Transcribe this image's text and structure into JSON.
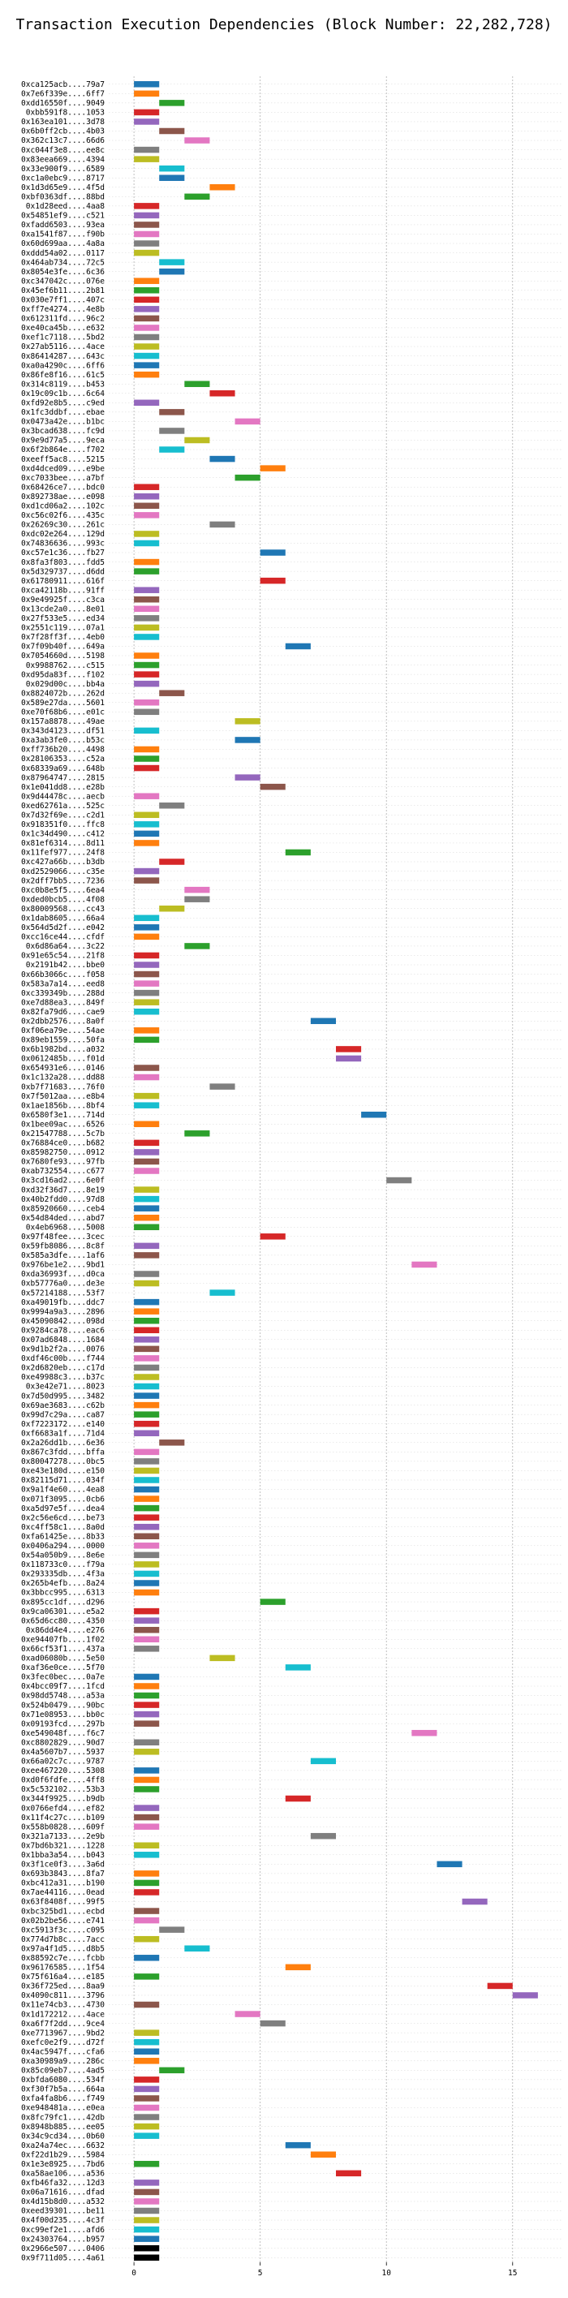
{
  "chart_data": {
    "type": "bar",
    "orientation": "horizontal",
    "title": "Transaction Execution Dependencies (Block Number: 22,282,728)",
    "xlabel": "",
    "ylabel": "",
    "xlim": [
      -1,
      17
    ],
    "xticks": [
      0,
      5,
      10,
      15
    ],
    "grid": "vertical dotted",
    "bar_width": 1,
    "colors": [
      "#1f77b4",
      "#ff7f0e",
      "#2ca02c",
      "#d62728",
      "#9467bd",
      "#8c564b",
      "#e377c2",
      "#7f7f7f",
      "#bcbd22",
      "#17becf"
    ],
    "transactions": [
      "0xca125acb....79a7",
      "0x7e6f339e....6ff7",
      "0xdd16550f....9049",
      "0xbb591f8....1053",
      "0x163ea101....3d78",
      "0x6b0ff2cb....4b03",
      "0x362c13c7....66d6",
      "0xc044f3e8....ee8c",
      "0x83eea669....4394",
      "0x33e900f9....6589",
      "0xc1a0ebc9....8717",
      "0x1d3d65e9....4f5d",
      "0xbf0363df....88bd",
      "0x1d28eed....4aa8",
      "0x54851ef9....c521",
      "0xfadd6503....93ea",
      "0xa1541f87....f90b",
      "0x60d699aa....4a8a",
      "0xddd54a02....0117",
      "0x464ab734....72c5",
      "0x8054e3fe....6c36",
      "0xc347042c....076e",
      "0x45ef6b11....2b81",
      "0x030e7ff1....407c",
      "0xff7e4274....4e8b",
      "0x612311fd....96c2",
      "0xe40ca45b....e632",
      "0xef1c7118....5bd2",
      "0x27ab5116....4ace",
      "0x86414287....643c",
      "0xa0a4290c....6ff6",
      "0x86fe8f16....61c5",
      "0x314c8119....b453",
      "0x19c09c1b....6c64",
      "0xfd92e8b5....c9ed",
      "0x1fc3ddbf....ebae",
      "0x0473a42e....b1bc",
      "0x3bcad638....fc9d",
      "0x9e9d77a5....9eca",
      "0x6f2b864e....f702",
      "0xeeff5ac8....5215",
      "0xd4dced09....e9be",
      "0xc7033bee....a7bf",
      "0x68426ce7....bdc0",
      "0x892738ae....e098",
      "0xd1cd06a2....102c",
      "0xc56c02f6....435c",
      "0x26269c30....261c",
      "0xdc02e264....129d",
      "0x74836636....993c",
      "0xc57e1c36....fb27",
      "0x8fa3f803....fdd5",
      "0x5d329737....d6dd",
      "0x61780911....616f",
      "0xca42118b....91ff",
      "0x9e49925f....c3ca",
      "0x13cde2a0....8e01",
      "0x27f533e5....ed34",
      "0x2551c119....07a1",
      "0x7f28ff3f....4eb0",
      "0x7f09b40f....649a",
      "0x7054660d....5198",
      "0x9988762....c515",
      "0xd95da83f....f102",
      "0x029d00c....bb4a",
      "0x8824072b....262d",
      "0x589e27da....5601",
      "0xe70f68b6....e01c",
      "0x157a8878....49ae",
      "0x343d4123....df51",
      "0xa3ab3fe0....b53c",
      "0xff736b20....4498",
      "0x28106353....c52a",
      "0x68339a69....648b",
      "0x87964747....2815",
      "0x1e041dd8....e28b",
      "0x9d44478c....aecb",
      "0xed62761a....525c",
      "0x7d32f69e....c2d1",
      "0x918351f0....ffc8",
      "0x1c34d490....c412",
      "0x81ef6314....8d11",
      "0x11fef977....24f8",
      "0xc427a66b....b3db",
      "0xd2529066....c35e",
      "0x2dff7bb5....7236",
      "0xc0b8e5f5....6ea4",
      "0xded0bcb5....4f08",
      "0x80009568....cc43",
      "0x1dab8605....66a4",
      "0x564d5d2f....e042",
      "0xcc16ce44....cfdf",
      "0x6d86a64....3c22",
      "0x91e65c54....21f8",
      "0x2191b42....bbe0",
      "0x66b3066c....f058",
      "0x583a7a14....eed8",
      "0xc339349b....288d",
      "0xe7d88ea3....849f",
      "0x82fa79d6....cae9",
      "0x2dbb2576....8a0f",
      "0xf06ea79e....54ae",
      "0x89eb1559....50fa",
      "0x6b1982bd....a032",
      "0x0612485b....f01d",
      "0x654931e6....0146",
      "0x1c132a28....dd88",
      "0xb7f71683....76f0",
      "0x7f5012aa....e8b4",
      "0x1ae1856b....8bf4",
      "0x6580f3e1....714d",
      "0x1bee09ac....6526",
      "0x21547788....5c7b",
      "0x76884ce0....b682",
      "0x85982750....0912",
      "0x7680fe93....97fb",
      "0xab732554....c677",
      "0x3cd16ad2....6e0f",
      "0xd32f36d7....8e19",
      "0x40b2fdd0....97d8",
      "0x85920660....ceb4",
      "0x54d84ded....abd7",
      "0x4eb6968....5008",
      "0x97f48fee....3cec",
      "0x59fb8086....8c8f",
      "0x585a3dfe....1af6",
      "0x976be1e2....9bd1",
      "0xda36993f....d0ca",
      "0xb57776a0....de3e",
      "0x57214188....53f7",
      "0xa49019fb....ddc7",
      "0x9994a9a3....2896",
      "0x45090842....098d",
      "0x9284ca78....eac6",
      "0x07ad6848....1684",
      "0x9d1b2f2a....0076",
      "0xdf46c00b....f744",
      "0x2d6820eb....c17d",
      "0xe49988c3....b37c",
      "0x3e42e71....8023",
      "0x7d50d995....3482",
      "0x69ae3683....c62b",
      "0x99d7c29a....ca87",
      "0xf7223172....e140",
      "0xf6683a1f....71d4",
      "0x2a26dd1b....6e36",
      "0x867c3fdd....bffa",
      "0x80047278....0bc5",
      "0xe43e180d....e150",
      "0x82115d71....034f",
      "0x9a1f4e60....4ea8",
      "0x071f3095....0cb6",
      "0xa5d97e5f....dea4",
      "0x2c56e6cd....be73",
      "0xc4ff58c1....8a0d",
      "0xfa61425e....8b33",
      "0x0406a294....0000",
      "0x54a050b9....8e6e",
      "0x118733c0....f79a",
      "0x293335db....4f3a",
      "0x265b4efb....8a24",
      "0x3bbcc995....6313",
      "0x895cc1df....d296",
      "0x9ca06301....e5a2",
      "0x65d6cc80....4350",
      "0x86dd4e4....e276",
      "0xe94407fb....1f02",
      "0x66cf53f1....437a",
      "0xad06080b....5e50",
      "0xaf36e0ce....5f70",
      "0x3fec0bec....0a7e",
      "0x4bcc09f7....1fcd",
      "0x98dd5748....a53a",
      "0x524b0479....90bc",
      "0x71e08953....bb0c",
      "0x09193fcd....297b",
      "0xe549048f....f6c7",
      "0xc8802829....90d7",
      "0x4a5607b7....5937",
      "0x66a02c7c....9787",
      "0xee467220....5308",
      "0xd0f6fdfe....4ff8",
      "0x5c532102....53b3",
      "0x344f9925....b9db",
      "0x0766efd4....ef82",
      "0x11f4c27c....b109",
      "0x558b0828....609f",
      "0x321a7133....2e9b",
      "0x7bd6b321....1228",
      "0x1bba3a54....b043",
      "0x3f1ce0f3....3a6d",
      "0x693b3843....8fa7",
      "0xbc412a31....b190",
      "0x7ae44116....0ead",
      "0x63f8408f....99f5",
      "0xbc325bd1....ecbd",
      "0x02b2be56....e741",
      "0xc5913f3c....c095",
      "0x774d7b8c....7acc",
      "0x97a4f1d5....d8b5",
      "0x88592c7e....fcbb",
      "0x96176585....1f54",
      "0x75f616a4....e185",
      "0x36f725ed....8aa9",
      "0x4090c811....3796",
      "0x11e74cb3....4730",
      "0x1d172212....4ace",
      "0xa6f7f2dd....9ce4",
      "0xe7713967....9bd2",
      "0xefc0e2f9....d72f",
      "0x4ac5947f....cfa6",
      "0xa30989a9....286c",
      "0x85c09eb7....4ad5",
      "0xbfda6080....534f",
      "0xf30f7b5a....664a",
      "0xfa4fa8b6....f749",
      "0xe948481a....e0ea",
      "0x8fc79fc1....42db",
      "0x8948b885....ee05",
      "0x34c9cd34....0b60",
      "0xa24a74ec....6632",
      "0xf22d1b29....5984",
      "0x1e3e8925....7bd6",
      "0xa58ae106....a536",
      "0xfb46fa32....12d3",
      "0x06a71616....dfad",
      "0x4d15b8d0....a532",
      "0xeed39301....be11",
      "0x4f00d235....4c3f",
      "0xc99ef2e1....afd6",
      "0x24303764....b957",
      "0x2966e507....0406",
      "0x9f711d05....4a61"
    ],
    "start_values": [
      0,
      0,
      1,
      0,
      0,
      1,
      2,
      0,
      0,
      1,
      1,
      3,
      2,
      0,
      0,
      0,
      0,
      0,
      0,
      1,
      1,
      0,
      0,
      0,
      0,
      0,
      0,
      0,
      0,
      0,
      0,
      0,
      2,
      3,
      0,
      1,
      4,
      1,
      2,
      1,
      3,
      5,
      4,
      0,
      0,
      0,
      0,
      3,
      0,
      0,
      5,
      0,
      0,
      5,
      0,
      0,
      0,
      0,
      0,
      0,
      6,
      0,
      0,
      0,
      0,
      1,
      0,
      0,
      4,
      0,
      4,
      0,
      0,
      0,
      4,
      5,
      0,
      1,
      0,
      0,
      0,
      0,
      6,
      1,
      0,
      0,
      2,
      2,
      1,
      0,
      0,
      0,
      2,
      0,
      0,
      0,
      0,
      0,
      0,
      0,
      7,
      0,
      0,
      8,
      8,
      0,
      0,
      3,
      0,
      0,
      9,
      0,
      2,
      0,
      0,
      0,
      0,
      10,
      0,
      0,
      0,
      0,
      0,
      5,
      0,
      0,
      11,
      0,
      0,
      3,
      0,
      0,
      0,
      0,
      0,
      0,
      0,
      0,
      0,
      0,
      0,
      0,
      0,
      0,
      0,
      1,
      0,
      0,
      0,
      0,
      0,
      0,
      0,
      0,
      0,
      0,
      0,
      0,
      0,
      0,
      0,
      0,
      5,
      0,
      0,
      0,
      0,
      0,
      3,
      6,
      0,
      0,
      0,
      0,
      0,
      0,
      11,
      0,
      0,
      7,
      0,
      0,
      0,
      6,
      0,
      0,
      0,
      7,
      0,
      0,
      12,
      0,
      0,
      0,
      13,
      0,
      0,
      1,
      0,
      2,
      0,
      6,
      0,
      14,
      15,
      0,
      4,
      5,
      0,
      0,
      0,
      0,
      1,
      0,
      0,
      0,
      0,
      0,
      0,
      0,
      6,
      7,
      0,
      8,
      0,
      0,
      0,
      0,
      0,
      0,
      0,
      0,
      0,
      0,
      0
    ],
    "color_indices": [
      0,
      1,
      2,
      3,
      4,
      5,
      6,
      7,
      8,
      9,
      0,
      1,
      2,
      3,
      4,
      5,
      6,
      7,
      8,
      9,
      0,
      1,
      2,
      3,
      4,
      5,
      6,
      7,
      8,
      9,
      0,
      1,
      2,
      3,
      4,
      5,
      6,
      7,
      8,
      9,
      0,
      1,
      2,
      3,
      4,
      5,
      6,
      7,
      8,
      9,
      0,
      1,
      2,
      3,
      4,
      5,
      6,
      7,
      8,
      9,
      0,
      1,
      2,
      3,
      4,
      5,
      6,
      7,
      8,
      9,
      0,
      1,
      2,
      3,
      4,
      5,
      6,
      7,
      8,
      9,
      0,
      1,
      2,
      3,
      4,
      5,
      6,
      7,
      8,
      9,
      0,
      1,
      2,
      3,
      4,
      5,
      6,
      7,
      8,
      9,
      0,
      1,
      2,
      3,
      4,
      5,
      6,
      7,
      8,
      9,
      0,
      1,
      2,
      3,
      4,
      5,
      6,
      7,
      8,
      9,
      0,
      1,
      2,
      3,
      4,
      5,
      6,
      7,
      8,
      9,
      0,
      1,
      2,
      3,
      4,
      5,
      6,
      7,
      8,
      9,
      0,
      1,
      2,
      3,
      4,
      5,
      6,
      7,
      8,
      9,
      0,
      1,
      2,
      3,
      4,
      5,
      6,
      7,
      8,
      9,
      0,
      1,
      2,
      3,
      4,
      5,
      6,
      7,
      8,
      9,
      0,
      1,
      2,
      3,
      4,
      5,
      6,
      7,
      8,
      9,
      0,
      1,
      2,
      3,
      4,
      5,
      6,
      7,
      8,
      9,
      0,
      1,
      2,
      3,
      4,
      5,
      6,
      7,
      8,
      9,
      0,
      1,
      2,
      3,
      4,
      5,
      6,
      7,
      8,
      9,
      0,
      1,
      2,
      3,
      4,
      5,
      6,
      7,
      8,
      9,
      0,
      1,
      2,
      3,
      4,
      5,
      6,
      7,
      8,
      9,
      0
    ]
  }
}
